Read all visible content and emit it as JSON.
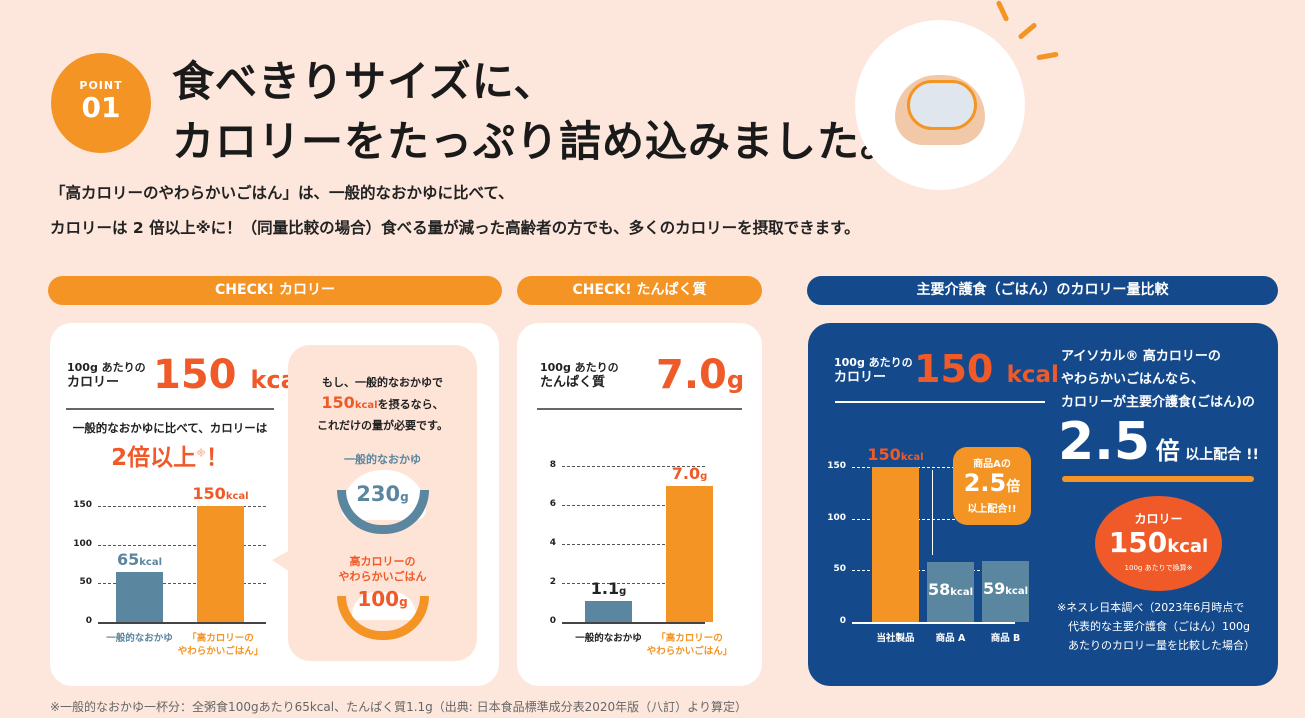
{
  "header": {
    "point_label": "POINT",
    "point_number": "01",
    "title_line1": "食べきりサイズに、",
    "title_line2": "カロリーをたっぷり詰め込みました。"
  },
  "lead": {
    "line1": "「高カロリーのやわらかいごはん」は、一般的なおかゆに比べて、",
    "line2": "カロリーは 2 倍以上※に！（同量比較の場合）食べる量が減った高齢者の方でも、多くのカロリーを摂取できます。"
  },
  "colors": {
    "background": "#fde7dc",
    "orange": "#f39425",
    "red_orange": "#ef5a28",
    "navy": "#144a8c",
    "blue_gray": "#5b86a0"
  },
  "calorie_panel": {
    "pill": "CHECK! カロリー",
    "per_label_1": "100g あたりの",
    "per_label_2": "カロリー",
    "value": "150",
    "unit": "kcal",
    "compare": "一般的なおかゆに比べて、カロリーは",
    "headline": "2倍以上",
    "mark": "※",
    "excl": "！",
    "bubble": {
      "line1": "もし、一般的なおかゆで",
      "line2_num": "150",
      "line2_unit": "kcal",
      "line2_rest": "を摂るなら、",
      "line3": "これだけの量が必要です。",
      "bowl1_label": "一般的なおかゆ",
      "bowl1_value": "230",
      "bowl1_unit": "g",
      "bowl2_label_1": "高カロリーの",
      "bowl2_label_2": "やわらかいごはん",
      "bowl2_value": "100",
      "bowl2_unit": "g"
    }
  },
  "protein_panel": {
    "pill": "CHECK! たんぱく質",
    "per_label_1": "100g あたりの",
    "per_label_2": "たんぱく質",
    "value": "7.0",
    "unit": "g"
  },
  "compare_panel": {
    "pill": "主要介護食（ごはん）のカロリー量比較",
    "per_label_1": "100g あたりの",
    "per_label_2": "カロリー",
    "value": "150",
    "unit": "kcal",
    "text1": "アイソカル® 高カロリーの",
    "text2": "やわらかいごはんなら、",
    "text3": "カロリーが主要介護食(ごはん)の",
    "ratio": "2.5",
    "ratio_unit": "倍",
    "ratio_rest": "以上配合 !!",
    "callout_1": "商品Aの",
    "callout_num": "2.5",
    "callout_unit": "倍",
    "callout_3": "以上配合!!",
    "badge_label": "カロリー",
    "badge_value": "150",
    "badge_unit": "kcal",
    "badge_note": "100g あたりで換算※",
    "note": [
      "※ネスレ日本調べ（2023年6月時点で",
      "代表的な主要介護食（ごはん）100g",
      "あたりのカロリー量を比較した場合）"
    ]
  },
  "footnote": "※一般的なおかゆ一杯分：全粥食100gあたり65kcal、たんぱく質1.1g（出典: 日本食品標準成分表2020年版（八訂）より算定）",
  "chart_data": [
    {
      "type": "bar",
      "categories": [
        "一般的なおかゆ",
        "「高カロリーのやわらかいごはん」"
      ],
      "values": [
        65,
        150
      ],
      "data_labels": [
        "65kcal",
        "150kcal"
      ],
      "ylim": [
        0,
        150
      ],
      "yticks": [
        "0",
        "50",
        "100",
        "150"
      ],
      "grid": true
    },
    {
      "type": "bar",
      "categories": [
        "一般的なおかゆ",
        "「高カロリーのやわらかいごはん」"
      ],
      "values": [
        1.1,
        7.0
      ],
      "data_labels": [
        "1.1g",
        "7.0g"
      ],
      "ylim": [
        0,
        8
      ],
      "yticks": [
        "0",
        "2",
        "4",
        "6",
        "8"
      ],
      "grid": true
    },
    {
      "type": "bar",
      "categories": [
        "当社製品",
        "商品 A",
        "商品 B"
      ],
      "values": [
        150,
        58,
        59
      ],
      "data_labels": [
        "150kcal",
        "58kcal",
        "59kcal"
      ],
      "ylim": [
        0,
        150
      ],
      "yticks": [
        "0",
        "50",
        "100",
        "150"
      ],
      "grid": true
    }
  ]
}
